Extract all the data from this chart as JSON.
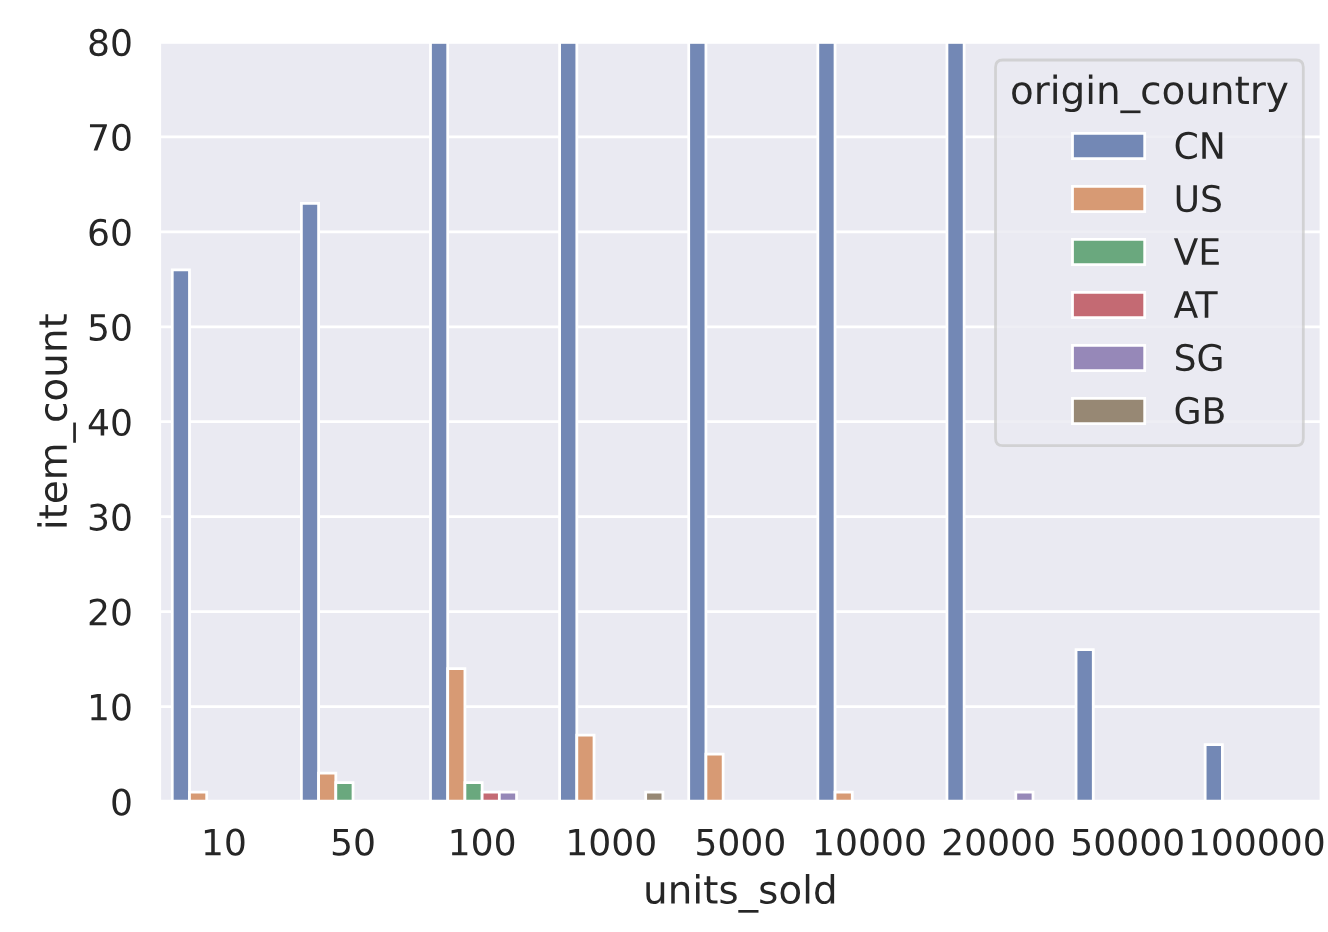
{
  "chart_data": {
    "type": "bar",
    "xlabel": "units_sold",
    "ylabel": "item_count",
    "legend_title": "origin_country",
    "categories": [
      "10",
      "50",
      "100",
      "1000",
      "5000",
      "10000",
      "20000",
      "50000",
      "100000"
    ],
    "series": [
      {
        "name": "CN",
        "color": "#7388b5",
        "values": [
          56,
          63,
          80,
          80,
          80,
          80,
          80,
          16,
          6
        ]
      },
      {
        "name": "US",
        "color": "#d79a74",
        "values": [
          1,
          3,
          14,
          7,
          5,
          1,
          null,
          null,
          null
        ]
      },
      {
        "name": "VE",
        "color": "#6aa87e",
        "values": [
          null,
          2,
          2,
          null,
          null,
          null,
          null,
          null,
          null
        ]
      },
      {
        "name": "AT",
        "color": "#c46a73",
        "values": [
          null,
          null,
          1,
          null,
          null,
          null,
          null,
          null,
          null
        ]
      },
      {
        "name": "SG",
        "color": "#9688b8",
        "values": [
          null,
          null,
          1,
          null,
          null,
          null,
          1,
          null,
          null
        ]
      },
      {
        "name": "GB",
        "color": "#978874",
        "values": [
          null,
          null,
          null,
          1,
          null,
          null,
          null,
          null,
          null
        ]
      }
    ],
    "ylim": [
      0,
      80
    ],
    "yticks": [
      0,
      10,
      20,
      30,
      40,
      50,
      60,
      70,
      80
    ],
    "grid": "y",
    "legend": "top right"
  }
}
